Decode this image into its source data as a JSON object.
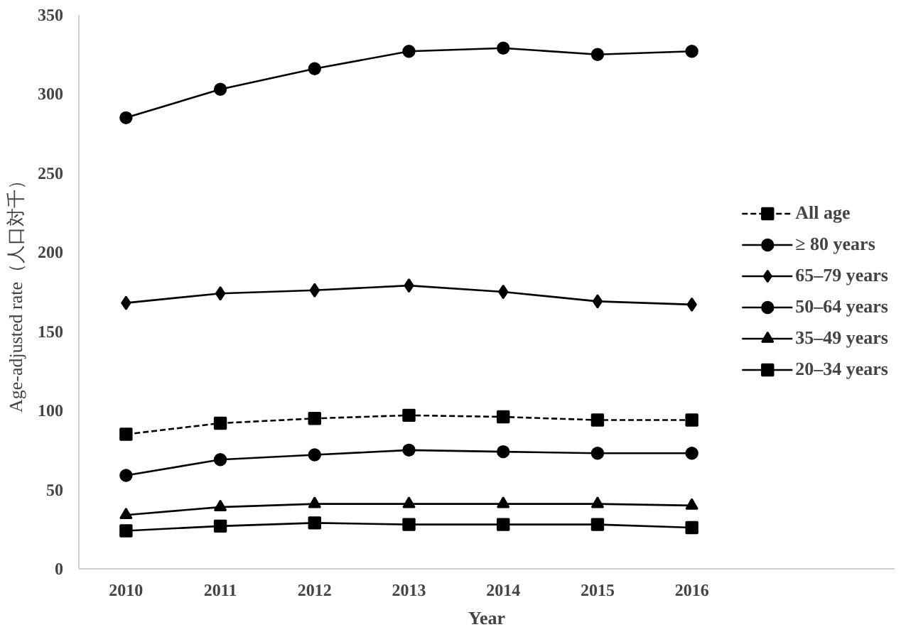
{
  "chart_data": {
    "type": "line",
    "xlabel": "Year",
    "ylabel": "Age-adjusted rate（人口対千）",
    "categories": [
      "2010",
      "2011",
      "2012",
      "2013",
      "2014",
      "2015",
      "2016"
    ],
    "ylim": [
      0,
      350
    ],
    "yticks": [
      0,
      50,
      100,
      150,
      200,
      250,
      300,
      350
    ],
    "legend": "right",
    "series": [
      {
        "name": "All age",
        "color": "#000000",
        "marker": "square",
        "line_style": "dashed",
        "values": [
          85,
          92,
          95,
          97,
          96,
          94,
          94
        ]
      },
      {
        "name": "≥ 80 years",
        "color": "#000000",
        "marker": "circle",
        "line_style": "solid",
        "values": [
          285,
          303,
          316,
          327,
          329,
          325,
          327
        ]
      },
      {
        "name": "65–79 years",
        "color": "#000000",
        "marker": "diamond",
        "line_style": "solid",
        "values": [
          168,
          174,
          176,
          179,
          175,
          169,
          167
        ]
      },
      {
        "name": "50–64 years",
        "color": "#000000",
        "marker": "circle",
        "line_style": "solid",
        "values": [
          59,
          69,
          72,
          75,
          74,
          73,
          73
        ]
      },
      {
        "name": "35–49 years",
        "color": "#000000",
        "marker": "triangle",
        "line_style": "solid",
        "values": [
          34,
          39,
          41,
          41,
          41,
          41,
          40
        ]
      },
      {
        "name": "20–34 years",
        "color": "#000000",
        "marker": "square",
        "line_style": "solid",
        "values": [
          24,
          27,
          29,
          28,
          28,
          28,
          26
        ]
      }
    ]
  }
}
